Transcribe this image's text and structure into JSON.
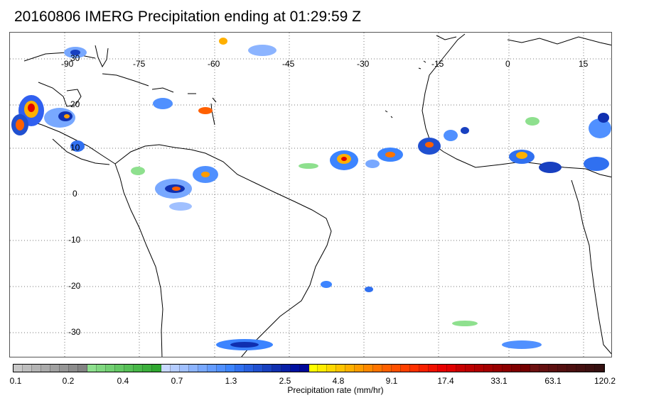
{
  "title": "20160806 IMERG Precipitation ending at 01:29:59 Z",
  "map": {
    "lon_ticks": [
      "-90",
      "-75",
      "-60",
      "-45",
      "-30",
      "-15",
      "0",
      "15"
    ],
    "lat_ticks": [
      "30",
      "20",
      "10",
      "0",
      "-10",
      "-20",
      "-30"
    ],
    "coastline_color": "#000000",
    "grid_style": "dotted"
  },
  "colorbar": {
    "label": "Precipitation rate (mm/hr)",
    "tick_labels": [
      "0.1",
      "0.2",
      "0.4",
      "0.7",
      "1.3",
      "2.5",
      "4.8",
      "9.1",
      "17.4",
      "33.1",
      "63.1",
      "120.2"
    ],
    "colors": [
      "#c8c8c8",
      "#bebebe",
      "#b4b4b4",
      "#aaaaaa",
      "#a0a0a0",
      "#969696",
      "#8c8c8c",
      "#828282",
      "#8ee08e",
      "#80d880",
      "#72d072",
      "#64c864",
      "#56c056",
      "#48b848",
      "#3cb03c",
      "#30a830",
      "#c8d8ff",
      "#b4ccff",
      "#a0c0ff",
      "#8cb4ff",
      "#78a8ff",
      "#649cff",
      "#5090ff",
      "#3c84ff",
      "#3070f0",
      "#2860e0",
      "#2050d0",
      "#1840c0",
      "#1030b0",
      "#0820a8",
      "#0010a0",
      "#000898",
      "#ffff00",
      "#ffec00",
      "#ffd800",
      "#ffc400",
      "#ffb000",
      "#ff9c00",
      "#ff8800",
      "#ff7400",
      "#ff6000",
      "#ff5000",
      "#ff4000",
      "#ff3000",
      "#f82000",
      "#f01000",
      "#e80000",
      "#e00000",
      "#c80000",
      "#bc0000",
      "#b00000",
      "#a40000",
      "#980000",
      "#8c0000",
      "#800000",
      "#740000",
      "#6c1010",
      "#641010",
      "#5c1010",
      "#541010",
      "#4c1010",
      "#441010",
      "#3c1010",
      "#341010"
    ]
  }
}
